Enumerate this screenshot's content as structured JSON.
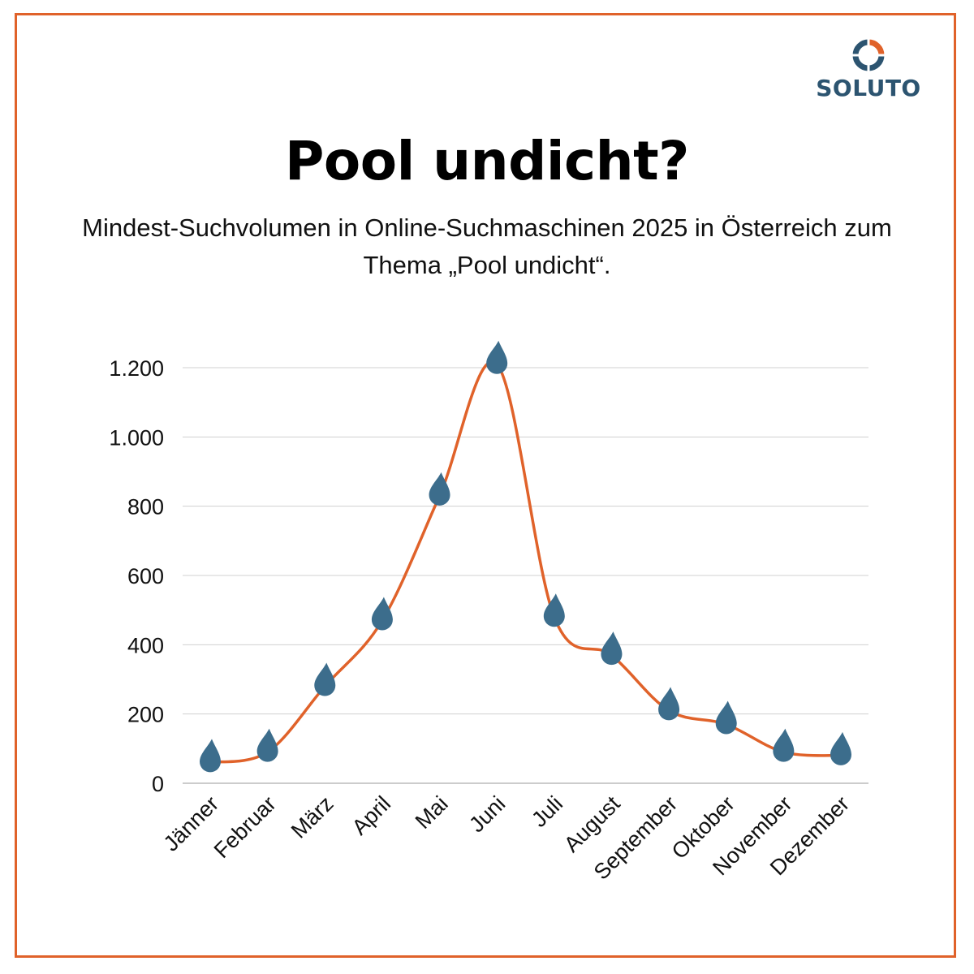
{
  "branding": {
    "logo_text": "SOLUTO",
    "logo_icon": "soluto-ring-icon"
  },
  "header": {
    "title": "Pool undicht?",
    "subtitle": "Mindest-Suchvolumen in Online-Suchmaschinen 2025 in Österreich zum Thema „Pool undicht“."
  },
  "colors": {
    "frame": "#e0622a",
    "line": "#e0622a",
    "marker": "#3c6d8c",
    "logo_blue": "#2c5470",
    "grid": "#d0d0d0"
  },
  "chart_data": {
    "type": "line",
    "title": "Pool undicht?",
    "subtitle": "Mindest-Suchvolumen in Online-Suchmaschinen 2025 in Österreich zum Thema „Pool undicht“.",
    "categories": [
      "Jänner",
      "Februar",
      "März",
      "April",
      "Mai",
      "Juni",
      "Juli",
      "August",
      "September",
      "Oktober",
      "November",
      "Dezember"
    ],
    "values": [
      60,
      90,
      280,
      470,
      830,
      1210,
      480,
      370,
      210,
      170,
      90,
      80
    ],
    "ylim": [
      0,
      1200
    ],
    "yticks": [
      0,
      200,
      400,
      600,
      800,
      1000,
      1200
    ],
    "ytick_labels": [
      "0",
      "200",
      "400",
      "600",
      "800",
      "1.000",
      "1.200"
    ],
    "xlabel": "",
    "ylabel": "",
    "marker": "water-drop-icon",
    "line_style": "smooth",
    "grid": true,
    "legend": "none"
  }
}
